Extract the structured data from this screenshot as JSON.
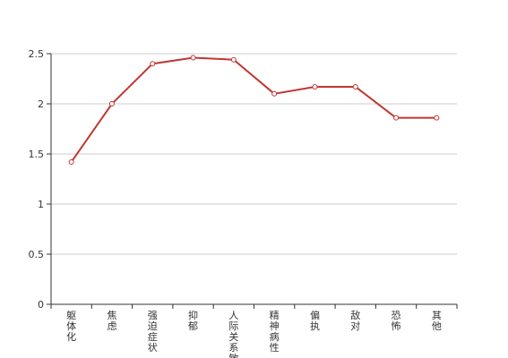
{
  "chart_data": {
    "type": "line",
    "title": "",
    "xlabel": "",
    "ylabel": "",
    "categories": [
      "躯体化",
      "焦虑",
      "强迫症状",
      "抑郁",
      "人际关系敏感",
      "精神病性",
      "偏执",
      "敌对",
      "恐怖",
      "其他"
    ],
    "series": [
      {
        "values": [
          1.42,
          2.0,
          2.4,
          2.46,
          2.44,
          2.1,
          2.17,
          2.17,
          1.86,
          1.86
        ]
      }
    ],
    "ylim": [
      0,
      2.5
    ],
    "yticks": [
      "0",
      "0.5",
      "1",
      "1.5",
      "2",
      "2.5"
    ],
    "grid": true,
    "legend": "none"
  },
  "colors": {
    "line": "#c23531",
    "point_fill": "#ffffff",
    "grid": "#cccccc",
    "axis": "#333333"
  }
}
